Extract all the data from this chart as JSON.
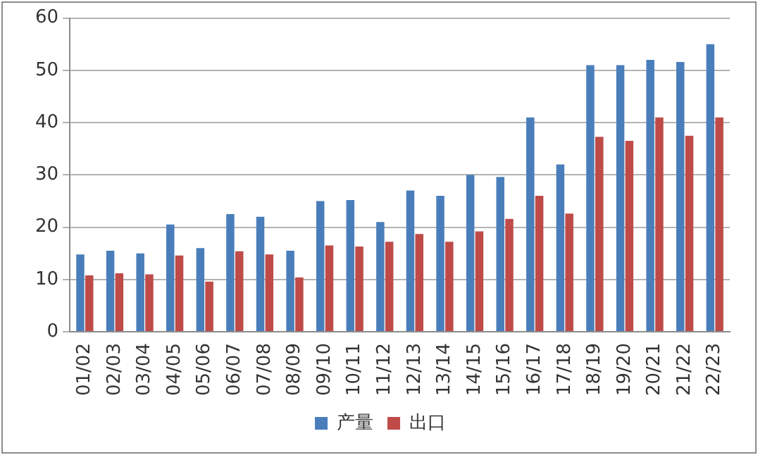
{
  "chart_data": {
    "type": "bar",
    "categories": [
      "01/02",
      "02/03",
      "03/04",
      "04/05",
      "05/06",
      "06/07",
      "07/08",
      "08/09",
      "09/10",
      "10/11",
      "11/12",
      "12/13",
      "13/14",
      "14/15",
      "15/16",
      "16/17",
      "17/18",
      "18/19",
      "19/20",
      "20/21",
      "21/22",
      "22/23"
    ],
    "series": [
      {
        "name": "产量",
        "color": "#4a7ebb",
        "values": [
          14.8,
          15.5,
          15,
          20.5,
          16,
          22.5,
          22,
          15.5,
          25,
          25.2,
          21,
          27,
          26,
          30,
          29.6,
          41,
          32,
          51,
          51,
          52,
          51.6,
          55
        ]
      },
      {
        "name": "出口",
        "color": "#be4b48",
        "values": [
          10.8,
          11.2,
          11,
          14.6,
          9.6,
          15.4,
          14.8,
          10.4,
          16.5,
          16.3,
          17.2,
          18.7,
          17.2,
          19.2,
          21.6,
          26,
          22.6,
          37.3,
          36.5,
          41,
          37.5,
          41
        ]
      }
    ],
    "ylim": [
      0,
      60
    ],
    "yticks": [
      0,
      10,
      20,
      30,
      40,
      50,
      60
    ],
    "grid": "y",
    "legend": "bottom"
  }
}
